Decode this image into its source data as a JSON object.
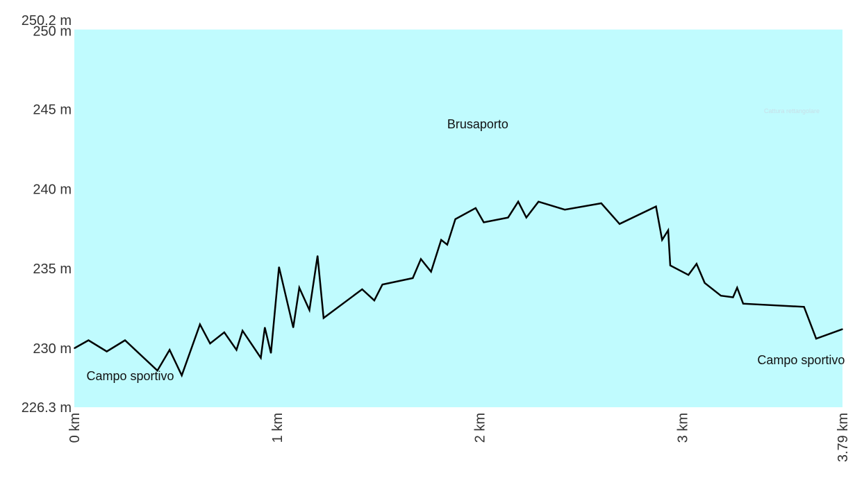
{
  "chart_data": {
    "type": "area",
    "xunit": "km",
    "yunit": "m",
    "xlim": [
      0,
      3.79
    ],
    "ylim": [
      226.3,
      250.2
    ],
    "xticks": [
      {
        "value": 0,
        "label": "0 km"
      },
      {
        "value": 1,
        "label": "1 km"
      },
      {
        "value": 2,
        "label": "2 km"
      },
      {
        "value": 3,
        "label": "3 km"
      },
      {
        "value": 3.79,
        "label": "3.79 km"
      }
    ],
    "yticks": [
      {
        "value": 226.3,
        "label": "226.3 m"
      },
      {
        "value": 230,
        "label": "230 m"
      },
      {
        "value": 235,
        "label": "235 m"
      },
      {
        "value": 240,
        "label": "240 m"
      },
      {
        "value": 245,
        "label": "245 m"
      },
      {
        "value": 250,
        "label": "250 m"
      },
      {
        "value": 250.2,
        "label": "250.2 m"
      }
    ],
    "annotations": [
      {
        "text": "Campo sportivo",
        "x": 0.06,
        "y": 228.0
      },
      {
        "text": "Brusaporto",
        "x": 1.84,
        "y": 243.8
      },
      {
        "text": "Campo sportivo",
        "x": 3.37,
        "y": 229.0
      }
    ],
    "faint_label": "Cattura rettangolare",
    "background_color": "#c0fbfe",
    "line_color": "#000000",
    "series": [
      {
        "points": [
          [
            0.0,
            230.0
          ],
          [
            0.07,
            230.5
          ],
          [
            0.16,
            229.8
          ],
          [
            0.25,
            230.5
          ],
          [
            0.41,
            228.6
          ],
          [
            0.47,
            229.9
          ],
          [
            0.53,
            228.3
          ],
          [
            0.62,
            231.5
          ],
          [
            0.67,
            230.3
          ],
          [
            0.74,
            231.0
          ],
          [
            0.8,
            229.9
          ],
          [
            0.83,
            231.1
          ],
          [
            0.92,
            229.4
          ],
          [
            0.94,
            231.3
          ],
          [
            0.97,
            229.7
          ],
          [
            1.01,
            235.1
          ],
          [
            1.08,
            231.3
          ],
          [
            1.11,
            233.8
          ],
          [
            1.16,
            232.4
          ],
          [
            1.2,
            235.8
          ],
          [
            1.23,
            231.9
          ],
          [
            1.42,
            233.7
          ],
          [
            1.48,
            233.0
          ],
          [
            1.52,
            234.0
          ],
          [
            1.67,
            234.4
          ],
          [
            1.71,
            235.6
          ],
          [
            1.76,
            234.8
          ],
          [
            1.81,
            236.8
          ],
          [
            1.84,
            236.5
          ],
          [
            1.88,
            238.1
          ],
          [
            1.98,
            238.8
          ],
          [
            2.02,
            237.9
          ],
          [
            2.14,
            238.2
          ],
          [
            2.19,
            239.2
          ],
          [
            2.23,
            238.2
          ],
          [
            2.29,
            239.2
          ],
          [
            2.42,
            238.7
          ],
          [
            2.6,
            239.1
          ],
          [
            2.69,
            237.8
          ],
          [
            2.87,
            238.9
          ],
          [
            2.9,
            236.8
          ],
          [
            2.93,
            237.4
          ],
          [
            2.94,
            235.2
          ],
          [
            3.03,
            234.6
          ],
          [
            3.07,
            235.3
          ],
          [
            3.11,
            234.1
          ],
          [
            3.19,
            233.3
          ],
          [
            3.25,
            233.2
          ],
          [
            3.27,
            233.8
          ],
          [
            3.3,
            232.8
          ],
          [
            3.6,
            232.6
          ],
          [
            3.66,
            230.6
          ],
          [
            3.79,
            231.2
          ]
        ]
      }
    ]
  }
}
